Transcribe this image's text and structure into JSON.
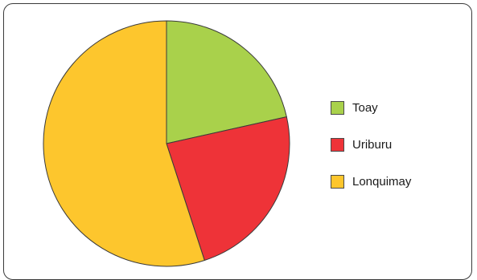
{
  "chart_data": {
    "type": "pie",
    "title": "",
    "start_angle": "12 o'clock",
    "direction": "clockwise",
    "slices": [
      {
        "label": "Toay",
        "value": 21.5,
        "color": "#a9d14b"
      },
      {
        "label": "Uriburu",
        "value": 23.5,
        "color": "#ee3338"
      },
      {
        "label": "Lonquimay",
        "value": 55.0,
        "color": "#fdc62d"
      }
    ],
    "legend_placement": "right"
  }
}
